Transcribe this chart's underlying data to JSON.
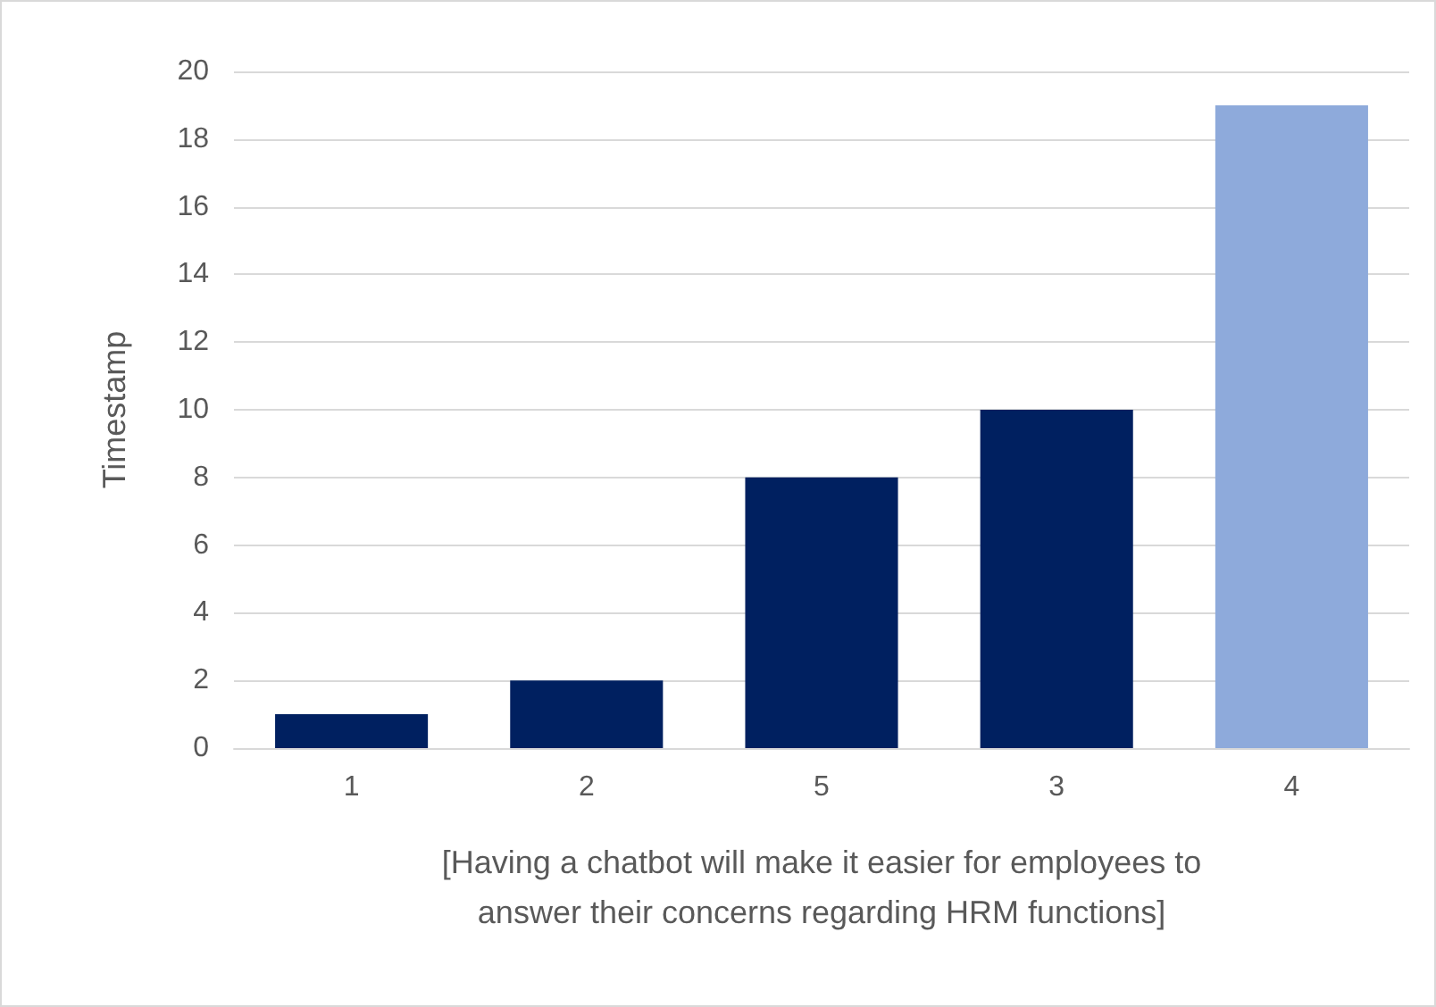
{
  "chart_data": {
    "type": "bar",
    "categories": [
      "1",
      "2",
      "5",
      "3",
      "4"
    ],
    "values": [
      1,
      2,
      8,
      10,
      19
    ],
    "colors": [
      "#002060",
      "#002060",
      "#002060",
      "#002060",
      "#8eaadb"
    ],
    "xlabel": "[Having a chatbot will make it easier for employees to\nanswer their concerns regarding HRM functions]",
    "ylabel": "Timestamp",
    "ylim": [
      0,
      20
    ],
    "yticks": [
      0,
      2,
      4,
      6,
      8,
      10,
      12,
      14,
      16,
      18,
      20
    ],
    "grid": "y"
  }
}
